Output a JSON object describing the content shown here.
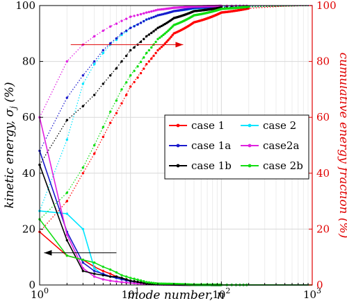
{
  "chart_data": {
    "type": "line",
    "x_scale": "log",
    "xlim": [
      1,
      1000
    ],
    "ylim_left": [
      0,
      100
    ],
    "ylim_right": [
      0,
      100
    ],
    "grid": true,
    "legend_placement": "center-right",
    "xlabel": "mode number, n",
    "ylabel_left": "kinetic energy, σ_j (%)",
    "ylabel_right": "cumulative energy fraction (%)",
    "left_axis_color": "#000000",
    "right_axis_color": "#e00000",
    "x_ticks": [
      "10^0",
      "10^1",
      "10^2",
      "10^3"
    ],
    "y_ticks_left": [
      "0",
      "20",
      "40",
      "60",
      "80",
      "100"
    ],
    "y_ticks_right": [
      "0",
      "20",
      "40",
      "60",
      "80",
      "100"
    ],
    "annotations": [
      {
        "type": "arrow",
        "direction": "right",
        "color": "#e00000",
        "meaning": "cumulative curves read on right axis"
      },
      {
        "type": "arrow",
        "direction": "left",
        "color": "#000000",
        "meaning": "energy curves read on left axis"
      }
    ],
    "series": [
      {
        "name": "case 1",
        "color": "#ff0000",
        "energy": {
          "x": [
            1,
            2,
            3,
            4,
            5,
            6,
            7,
            8,
            10,
            15,
            20,
            50,
            100,
            1000
          ],
          "y": [
            19,
            10.5,
            9,
            6.5,
            5,
            4,
            3,
            2.5,
            1.5,
            0.6,
            0.3,
            0.05,
            0.02,
            0
          ]
        },
        "cumulative": {
          "x": [
            1,
            2,
            3,
            4,
            5,
            6,
            8,
            10,
            15,
            20,
            30,
            50,
            100,
            200,
            500,
            1000
          ],
          "y": [
            19,
            30,
            40,
            47,
            53,
            58,
            65,
            71,
            79,
            84,
            90,
            94,
            97.5,
            99,
            99.8,
            100
          ]
        }
      },
      {
        "name": "case 2",
        "color": "#00e5ff",
        "energy": {
          "x": [
            1,
            2,
            3,
            4,
            5,
            7,
            10,
            15,
            20,
            50,
            100,
            1000
          ],
          "y": [
            26.5,
            25.5,
            20,
            6,
            3.5,
            2.5,
            1.5,
            0.5,
            0.2,
            0.03,
            0.01,
            0
          ]
        },
        "cumulative": {
          "x": [
            1,
            2,
            3,
            4,
            5,
            6,
            8,
            10,
            15,
            20,
            30,
            50,
            100,
            1000
          ],
          "y": [
            26.5,
            52,
            72,
            79,
            83,
            86,
            89.5,
            92,
            95,
            96.5,
            98,
            99,
            99.7,
            100
          ]
        }
      },
      {
        "name": "case 1a",
        "color": "#1a1acc",
        "energy": {
          "x": [
            1,
            2,
            3,
            4,
            5,
            6,
            7,
            8,
            10,
            15,
            20,
            50,
            100,
            1000
          ],
          "y": [
            48,
            19,
            8,
            5,
            4,
            3,
            2.5,
            2,
            1.3,
            0.5,
            0.25,
            0.05,
            0.02,
            0
          ]
        },
        "cumulative": {
          "x": [
            1,
            2,
            3,
            4,
            5,
            6,
            8,
            10,
            15,
            20,
            30,
            50,
            100,
            1000
          ],
          "y": [
            48,
            67,
            75,
            80,
            84,
            86.5,
            90,
            92,
            95,
            96.5,
            98,
            99.2,
            99.7,
            100
          ]
        }
      },
      {
        "name": "case2a",
        "color": "#e020e0",
        "energy": {
          "x": [
            1,
            2,
            3,
            4,
            5,
            6,
            8,
            10,
            15,
            20,
            50,
            100,
            1000
          ],
          "y": [
            60,
            18,
            6,
            3,
            2,
            1.5,
            1,
            0.7,
            0.3,
            0.15,
            0.03,
            0.01,
            0
          ]
        },
        "cumulative": {
          "x": [
            1,
            2,
            3,
            4,
            5,
            6,
            8,
            10,
            15,
            20,
            30,
            50,
            100,
            1000
          ],
          "y": [
            60,
            80,
            86,
            89,
            91,
            92.5,
            94.5,
            96,
            97.5,
            98.5,
            99.2,
            99.7,
            99.9,
            100
          ]
        }
      },
      {
        "name": "case 1b",
        "color": "#000000",
        "energy": {
          "x": [
            1,
            2,
            3,
            4,
            5,
            6,
            7,
            8,
            10,
            15,
            20,
            50,
            100,
            1000
          ],
          "y": [
            43,
            16,
            5,
            4,
            3.5,
            3,
            3,
            2.5,
            1.5,
            0.5,
            0.25,
            0.05,
            0.02,
            0
          ]
        },
        "cumulative": {
          "x": [
            1,
            2,
            3,
            4,
            5,
            6,
            8,
            10,
            15,
            20,
            30,
            50,
            100,
            1000
          ],
          "y": [
            43,
            59,
            64,
            68,
            72,
            75,
            80,
            84,
            89,
            92,
            95.5,
            98,
            99.3,
            100
          ]
        }
      },
      {
        "name": "case 2b",
        "color": "#11dd11",
        "energy": {
          "x": [
            1,
            2,
            3,
            4,
            5,
            6,
            7,
            8,
            10,
            15,
            20,
            50,
            100,
            1000
          ],
          "y": [
            23.5,
            10.5,
            9,
            8,
            6.5,
            5.5,
            4.5,
            3.5,
            2.5,
            1,
            0.5,
            0.08,
            0.02,
            0
          ]
        },
        "cumulative": {
          "x": [
            1,
            2,
            3,
            4,
            5,
            6,
            8,
            10,
            15,
            20,
            30,
            50,
            100,
            200,
            1000
          ],
          "y": [
            23.5,
            33,
            42,
            50,
            56.5,
            62,
            70,
            75,
            83,
            88,
            93,
            96.5,
            98.8,
            99.6,
            100
          ]
        }
      }
    ]
  }
}
